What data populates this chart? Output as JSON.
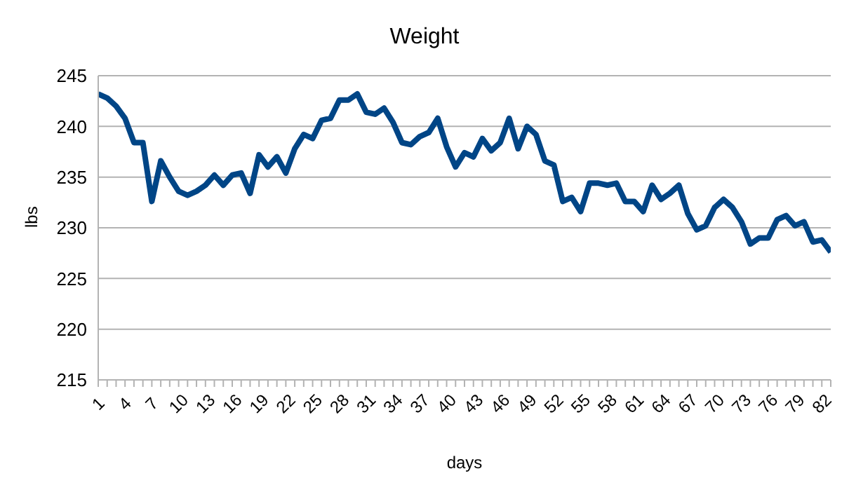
{
  "chart_data": {
    "type": "line",
    "title": "Weight",
    "xlabel": "days",
    "ylabel": "lbs",
    "categories": [
      "1",
      null,
      null,
      "4",
      null,
      null,
      "7",
      null,
      null,
      "10",
      null,
      null,
      "13",
      null,
      null,
      "16",
      null,
      null,
      "19",
      null,
      null,
      "22",
      null,
      null,
      "25",
      null,
      null,
      "28",
      null,
      null,
      "31",
      null,
      null,
      "34",
      null,
      null,
      "37",
      null,
      null,
      "40",
      null,
      null,
      "43",
      null,
      null,
      "46",
      null,
      null,
      "49",
      null,
      null,
      "52",
      null,
      null,
      "55",
      null,
      null,
      "58",
      null,
      null,
      "61",
      null,
      null,
      "64",
      null,
      null,
      "67",
      null,
      null,
      "70",
      null,
      null,
      "73",
      null,
      null,
      "76",
      null,
      null,
      "79",
      null,
      null,
      "82",
      null
    ],
    "series": [
      {
        "color": "#004586",
        "values": [
          243.2,
          242.8,
          242,
          240.8,
          238.4,
          238.4,
          232.6,
          236.6,
          235,
          233.6,
          233.2,
          233.6,
          234.2,
          235.2,
          234.2,
          235.2,
          235.4,
          233.4,
          237.2,
          236,
          237,
          235.4,
          237.8,
          239.2,
          238.8,
          240.6,
          240.8,
          242.6,
          242.6,
          243.2,
          241.4,
          241.2,
          241.8,
          240.4,
          238.4,
          238.2,
          239,
          239.4,
          240.8,
          238,
          236,
          237.4,
          237,
          238.8,
          237.6,
          238.4,
          240.8,
          237.8,
          240,
          239.2,
          236.6,
          236.2,
          232.6,
          233,
          231.6,
          234.4,
          234.4,
          234.2,
          234.4,
          232.6,
          232.6,
          231.6,
          234.2,
          232.8,
          233.4,
          234.2,
          231.4,
          229.8,
          230.2,
          232,
          232.8,
          232,
          230.6,
          228.4,
          229,
          229,
          230.8,
          231.2,
          230.2,
          230.6,
          228.6,
          228.8,
          227.6
        ]
      }
    ],
    "ylim": [
      215,
      245
    ],
    "yticks": [
      215,
      220,
      225,
      230,
      235,
      240,
      245
    ],
    "grid": "y",
    "legend": false,
    "marker": "none",
    "line_style": "solid"
  }
}
